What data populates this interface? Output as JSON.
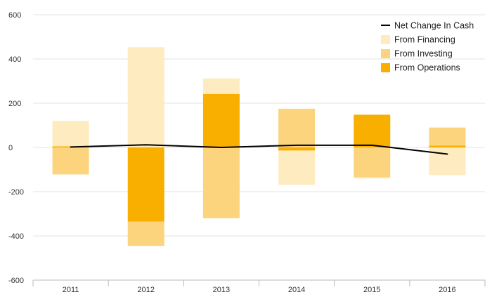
{
  "chart_data": {
    "type": "bar",
    "stacked": "diverging",
    "categories": [
      "2011",
      "2012",
      "2013",
      "2014",
      "2015",
      "2016"
    ],
    "series": [
      {
        "name": "From Operations",
        "kind": "bar",
        "color": "#F8AF00",
        "values": [
          5,
          -335,
          242,
          -14,
          148,
          8
        ]
      },
      {
        "name": "From Investing",
        "kind": "bar",
        "color": "#FCD47E",
        "values": [
          -122,
          -110,
          -320,
          175,
          -135,
          82
        ]
      },
      {
        "name": "From Financing",
        "kind": "bar",
        "color": "#FEEBC0",
        "values": [
          115,
          453,
          70,
          -155,
          -5,
          -125
        ]
      },
      {
        "name": "Net Change In Cash",
        "kind": "line",
        "color": "#000000",
        "values": [
          2,
          12,
          0,
          10,
          10,
          -30
        ]
      }
    ],
    "yticks": [
      "600",
      "400",
      "200",
      "0",
      "-200",
      "-400",
      "-600"
    ],
    "ylim": [
      -600,
      600
    ],
    "grid": true,
    "legend_position": "top-right",
    "legend_order": [
      "Net Change In Cash",
      "From Financing",
      "From Investing",
      "From Operations"
    ]
  }
}
